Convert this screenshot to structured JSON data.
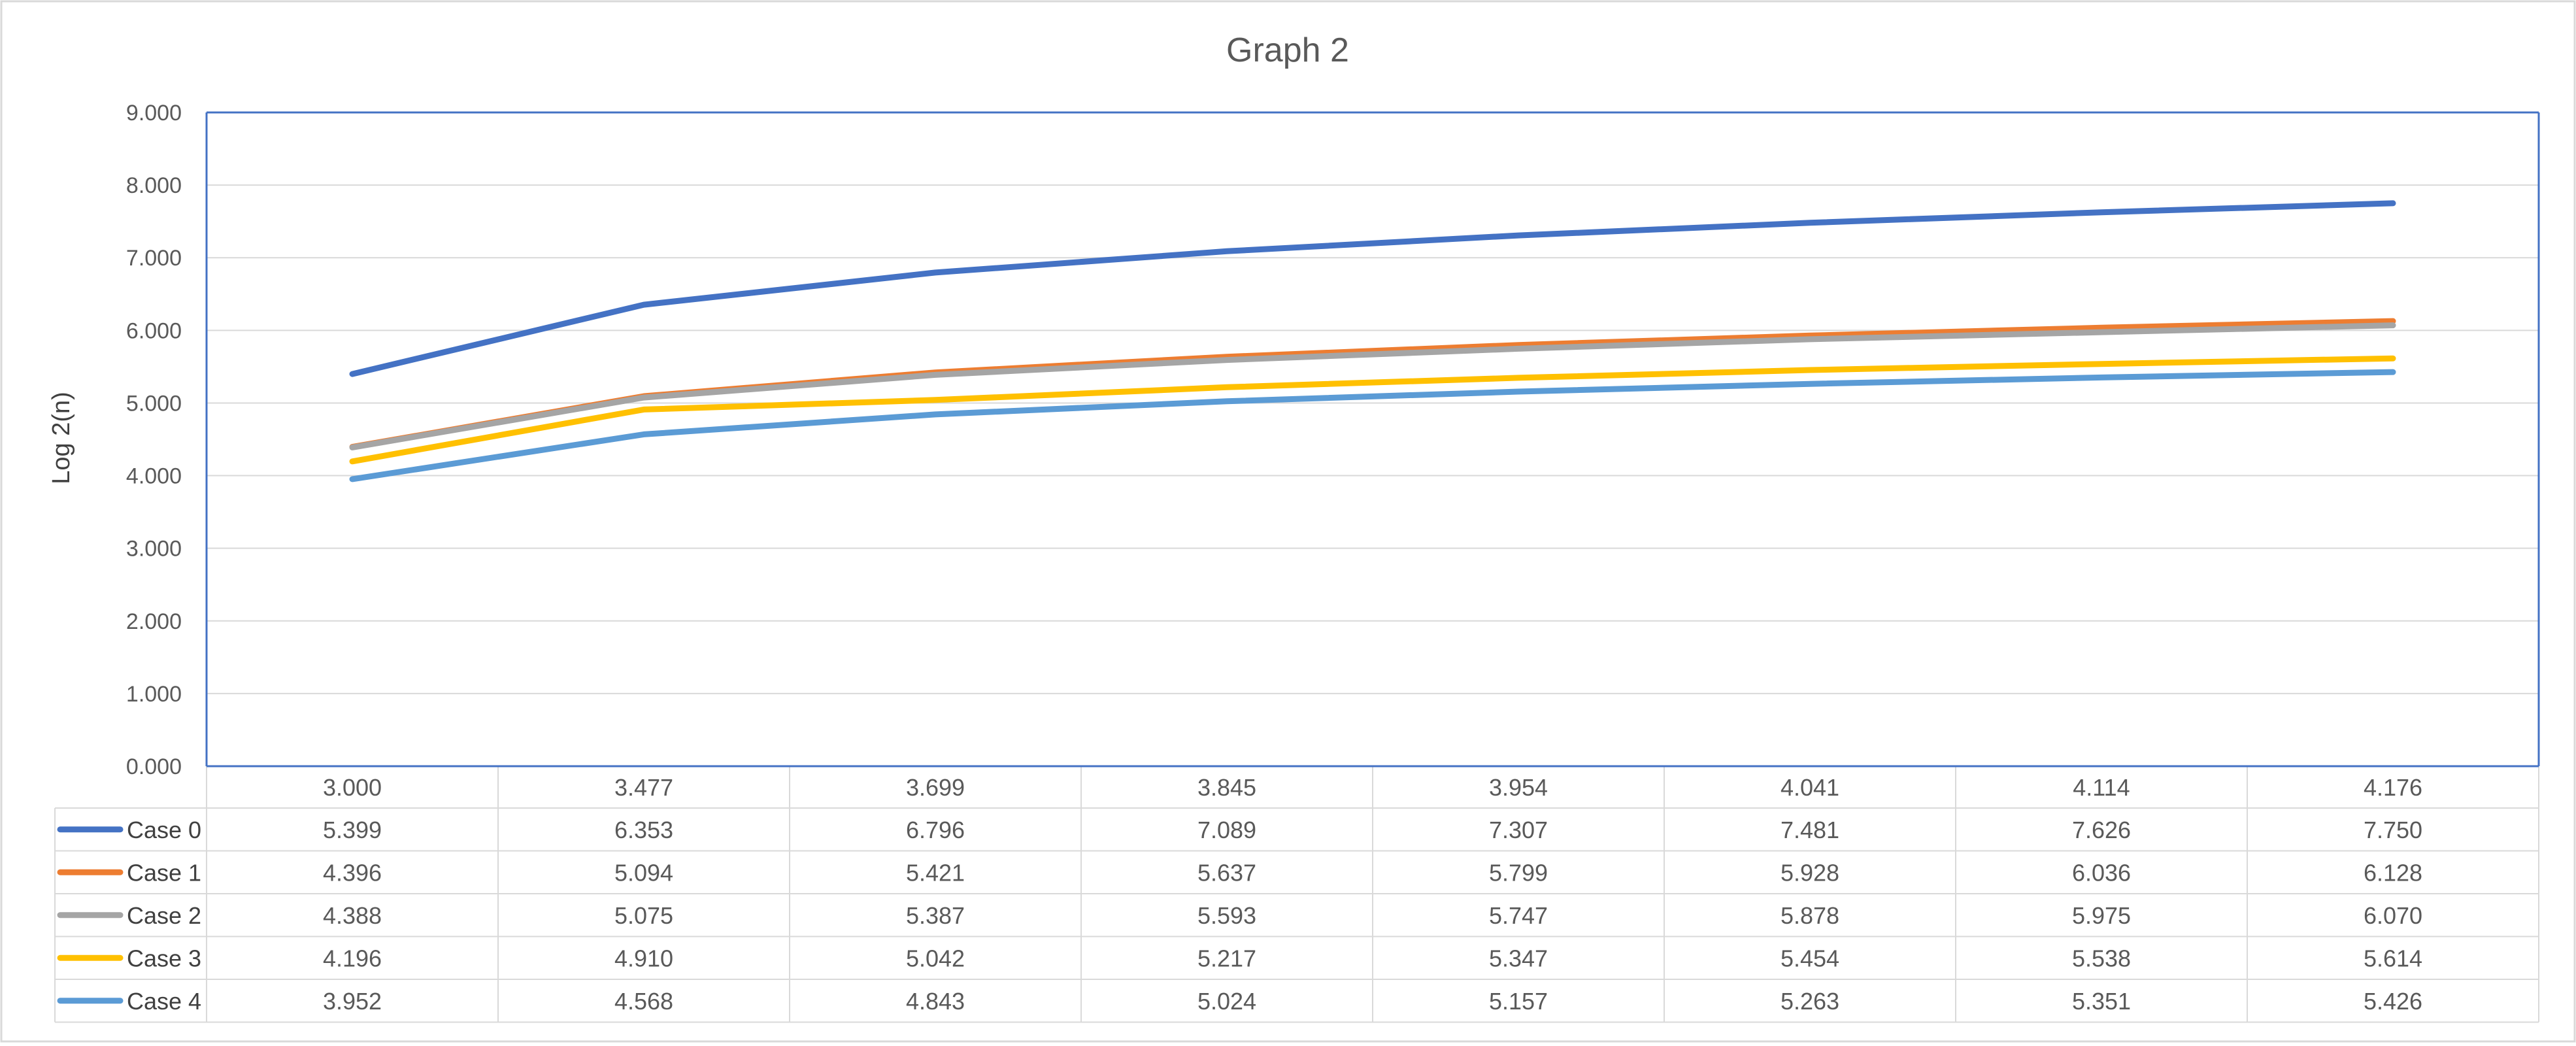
{
  "chart_data": {
    "type": "line",
    "title": "Graph 2",
    "ylabel": "Log 2(n)",
    "xlabel": "",
    "ylim": [
      0,
      9
    ],
    "y_ticks": [
      "0.000",
      "1.000",
      "2.000",
      "3.000",
      "4.000",
      "5.000",
      "6.000",
      "7.000",
      "8.000",
      "9.000"
    ],
    "grid": true,
    "legend_placement": "data table (left)",
    "categories": [
      "3.000",
      "3.477",
      "3.699",
      "3.845",
      "3.954",
      "4.041",
      "4.114",
      "4.176"
    ],
    "series": [
      {
        "name": "Case 0",
        "color": "#4472C4",
        "values": [
          5.399,
          6.353,
          6.796,
          7.089,
          7.307,
          7.481,
          7.626,
          7.75
        ],
        "labels": [
          "5.399",
          "6.353",
          "6.796",
          "7.089",
          "7.307",
          "7.481",
          "7.626",
          "7.750"
        ]
      },
      {
        "name": "Case 1",
        "color": "#ED7D31",
        "values": [
          4.396,
          5.094,
          5.421,
          5.637,
          5.799,
          5.928,
          6.036,
          6.128
        ],
        "labels": [
          "4.396",
          "5.094",
          "5.421",
          "5.637",
          "5.799",
          "5.928",
          "6.036",
          "6.128"
        ]
      },
      {
        "name": "Case 2",
        "color": "#A5A5A5",
        "values": [
          4.388,
          5.075,
          5.387,
          5.593,
          5.747,
          5.878,
          5.975,
          6.07
        ],
        "labels": [
          "4.388",
          "5.075",
          "5.387",
          "5.593",
          "5.747",
          "5.878",
          "5.975",
          "6.070"
        ]
      },
      {
        "name": "Case 3",
        "color": "#FFC000",
        "values": [
          4.196,
          4.91,
          5.042,
          5.217,
          5.347,
          5.454,
          5.538,
          5.614
        ],
        "labels": [
          "4.196",
          "4.910",
          "5.042",
          "5.217",
          "5.347",
          "5.454",
          "5.538",
          "5.614"
        ]
      },
      {
        "name": "Case 4",
        "color": "#5B9BD5",
        "values": [
          3.952,
          4.568,
          4.843,
          5.024,
          5.157,
          5.263,
          5.351,
          5.426
        ],
        "labels": [
          "3.952",
          "4.568",
          "4.843",
          "5.024",
          "5.157",
          "5.263",
          "5.351",
          "5.426"
        ]
      }
    ]
  }
}
